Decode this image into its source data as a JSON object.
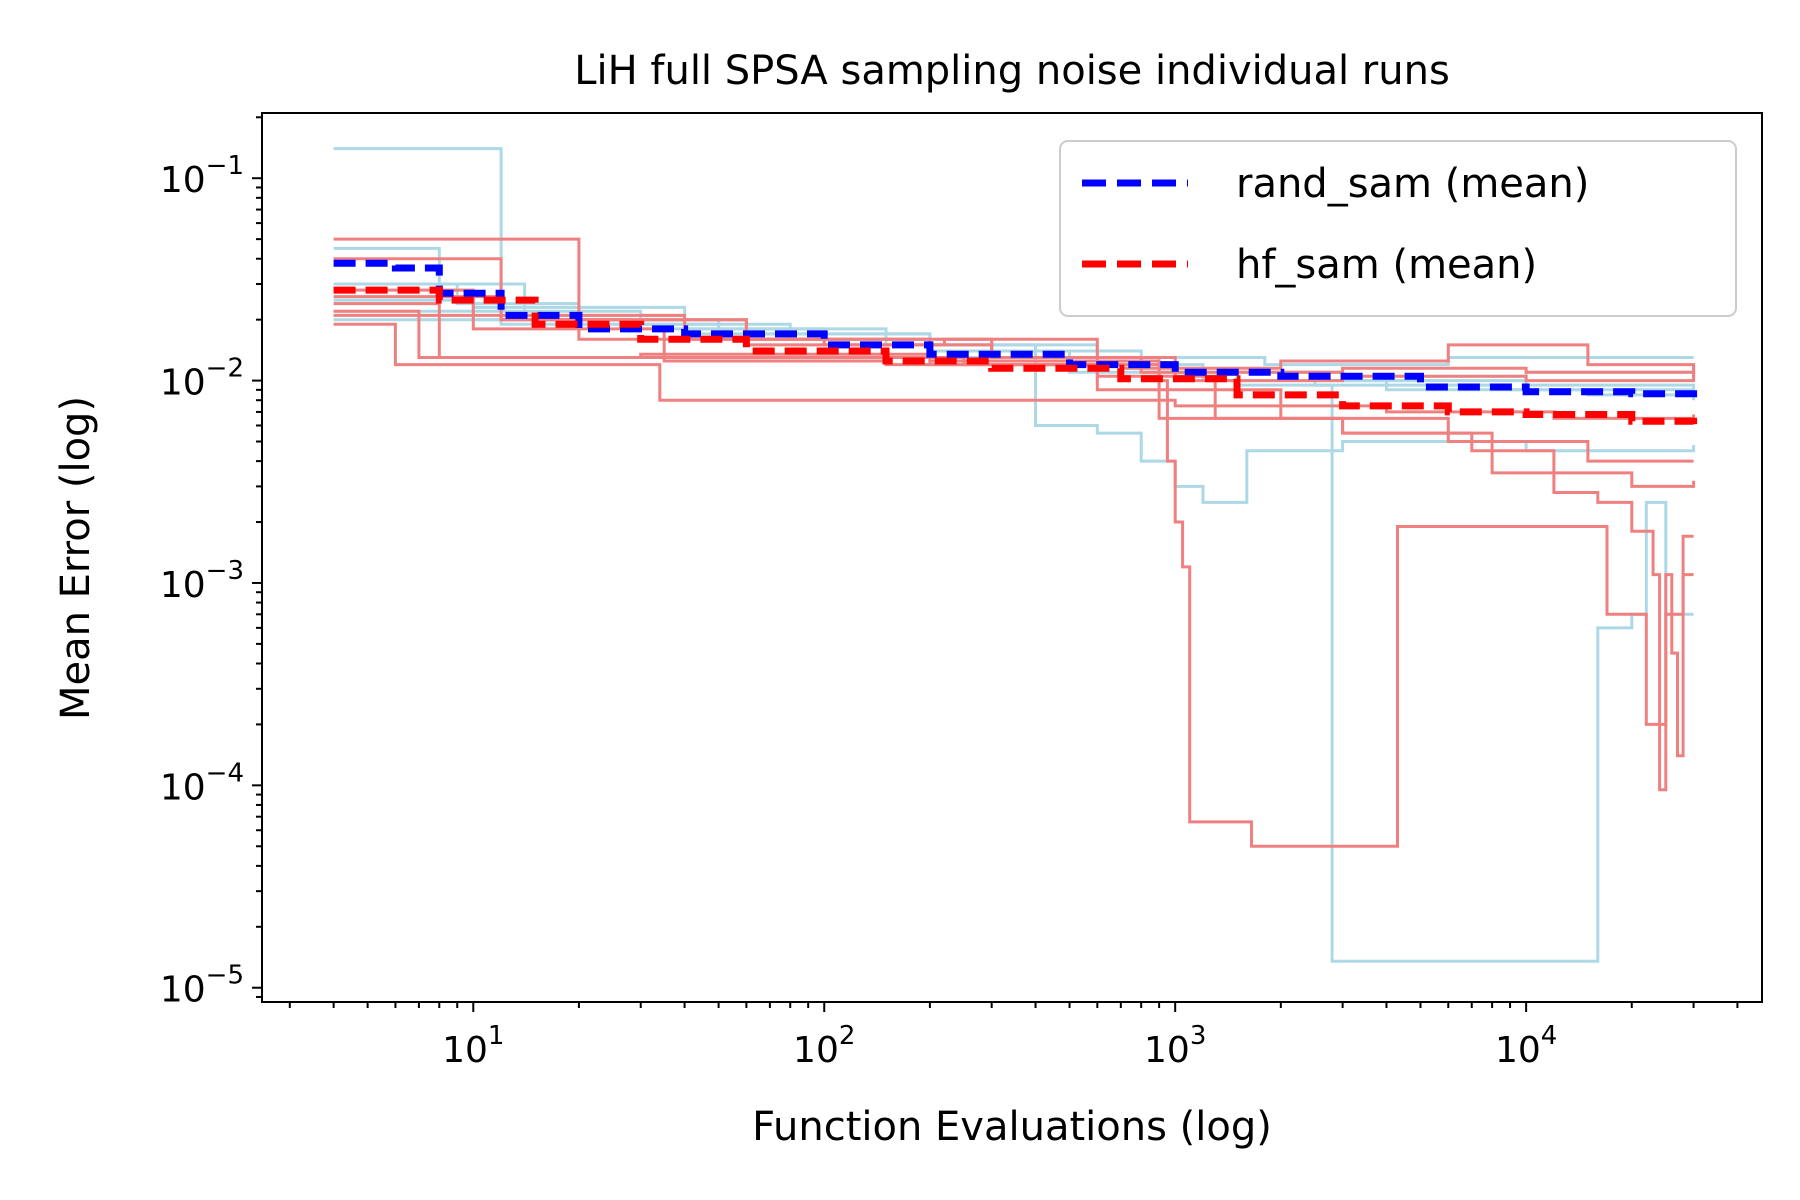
{
  "chart_data": {
    "type": "line",
    "title": "LiH full SPSA sampling noise individual runs",
    "xlabel": "Function Evaluations (log)",
    "ylabel": "Mean Error (log)",
    "xscale": "log",
    "yscale": "log",
    "xlim": [
      2.5,
      47000
    ],
    "ylim": [
      8.5e-06,
      0.21
    ],
    "grid": false,
    "legend_position": "upper right",
    "x_ticks": [
      {
        "value": 10,
        "base": "10",
        "exp": "1"
      },
      {
        "value": 100,
        "base": "10",
        "exp": "2"
      },
      {
        "value": 1000,
        "base": "10",
        "exp": "3"
      },
      {
        "value": 10000,
        "base": "10",
        "exp": "4"
      }
    ],
    "y_ticks": [
      {
        "value": 0.1,
        "base": "10",
        "exp": "−1"
      },
      {
        "value": 0.01,
        "base": "10",
        "exp": "−2"
      },
      {
        "value": 0.001,
        "base": "10",
        "exp": "−3"
      },
      {
        "value": 0.0001,
        "base": "10",
        "exp": "−4"
      },
      {
        "value": 1e-05,
        "base": "10",
        "exp": "−5"
      }
    ],
    "legend": [
      {
        "label": "rand_sam (mean)",
        "color": "#0000ff",
        "style": "dashed"
      },
      {
        "label": "hf_sam (mean)",
        "color": "#ff0000",
        "style": "dashed"
      }
    ],
    "colors": {
      "rand_sam_runs": "#add8e6",
      "hf_sam_runs": "#f08080",
      "rand_sam_mean": "#0000ff",
      "hf_sam_mean": "#ff0000"
    },
    "series": [
      {
        "name": "rand_sam run 1",
        "group": "rand_sam",
        "points": [
          [
            4,
            0.14
          ],
          [
            7,
            0.14
          ],
          [
            12,
            0.02
          ],
          [
            60,
            0.015
          ],
          [
            300,
            0.013
          ],
          [
            1000,
            0.011
          ],
          [
            3000,
            0.01
          ],
          [
            10000,
            0.011
          ],
          [
            30000,
            0.012
          ]
        ]
      },
      {
        "name": "rand_sam run 2",
        "group": "rand_sam",
        "points": [
          [
            4,
            0.045
          ],
          [
            8,
            0.03
          ],
          [
            14,
            0.021
          ],
          [
            40,
            0.018
          ],
          [
            150,
            0.015
          ],
          [
            600,
            0.013
          ],
          [
            1800,
            0.012
          ],
          [
            6000,
            0.013
          ],
          [
            30000,
            0.013
          ]
        ]
      },
      {
        "name": "rand_sam run 3",
        "group": "rand_sam",
        "points": [
          [
            4,
            0.03
          ],
          [
            9,
            0.024
          ],
          [
            20,
            0.019
          ],
          [
            80,
            0.016
          ],
          [
            300,
            0.013
          ],
          [
            900,
            0.011
          ],
          [
            2500,
            0.0095
          ],
          [
            9000,
            0.009
          ],
          [
            30000,
            0.008
          ]
        ]
      },
      {
        "name": "rand_sam run 4",
        "group": "rand_sam",
        "points": [
          [
            4,
            0.025
          ],
          [
            10,
            0.022
          ],
          [
            30,
            0.018
          ],
          [
            100,
            0.015
          ],
          [
            400,
            0.012
          ],
          [
            1200,
            0.01
          ],
          [
            4000,
            0.009
          ],
          [
            15000,
            0.0085
          ],
          [
            30000,
            0.0085
          ]
        ]
      },
      {
        "name": "rand_sam run 5",
        "group": "rand_sam",
        "points": [
          [
            4,
            0.02
          ],
          [
            12,
            0.019
          ],
          [
            50,
            0.016
          ],
          [
            200,
            0.014
          ],
          [
            500,
            0.011
          ],
          [
            1500,
            0.0095
          ],
          [
            2800,
            0.009
          ],
          [
            2800,
            1.35e-05
          ],
          [
            16000,
            1.35e-05
          ],
          [
            16000,
            0.0006
          ],
          [
            20000,
            0.0007
          ],
          [
            22000,
            0.0025
          ],
          [
            25000,
            0.0007
          ],
          [
            30000,
            0.0007
          ]
        ]
      },
      {
        "name": "rand_sam run 6",
        "group": "rand_sam",
        "points": [
          [
            4,
            0.028
          ],
          [
            10,
            0.023
          ],
          [
            40,
            0.017
          ],
          [
            200,
            0.013
          ],
          [
            400,
            0.006
          ],
          [
            600,
            0.0055
          ],
          [
            800,
            0.004
          ],
          [
            1000,
            0.003
          ],
          [
            1200,
            0.0025
          ],
          [
            1600,
            0.0045
          ],
          [
            3000,
            0.005
          ],
          [
            10000,
            0.0045
          ],
          [
            30000,
            0.0048
          ]
        ]
      },
      {
        "name": "rand_sam run 7",
        "group": "rand_sam",
        "points": [
          [
            4,
            0.022
          ],
          [
            10,
            0.02
          ],
          [
            50,
            0.017
          ],
          [
            200,
            0.014
          ],
          [
            800,
            0.011
          ],
          [
            3000,
            0.0105
          ],
          [
            10000,
            0.0095
          ],
          [
            30000,
            0.009
          ]
        ]
      },
      {
        "name": "hf_sam run 1",
        "group": "hf_sam",
        "points": [
          [
            4,
            0.05
          ],
          [
            14,
            0.05
          ],
          [
            20,
            0.016
          ],
          [
            100,
            0.015
          ],
          [
            300,
            0.013
          ],
          [
            800,
            0.011
          ],
          [
            3000,
            0.0115
          ],
          [
            10000,
            0.011
          ],
          [
            30000,
            0.0115
          ]
        ]
      },
      {
        "name": "hf_sam run 2",
        "group": "hf_sam",
        "points": [
          [
            4,
            0.04
          ],
          [
            8,
            0.04
          ],
          [
            12,
            0.02
          ],
          [
            60,
            0.016
          ],
          [
            300,
            0.013
          ],
          [
            1000,
            0.01
          ],
          [
            3000,
            0.0105
          ],
          [
            10000,
            0.01
          ],
          [
            30000,
            0.011
          ]
        ]
      },
      {
        "name": "hf_sam run 3",
        "group": "hf_sam",
        "points": [
          [
            4,
            0.019
          ],
          [
            6,
            0.012
          ],
          [
            30,
            0.012
          ],
          [
            34,
            0.008
          ],
          [
            200,
            0.008
          ],
          [
            1000,
            0.0075
          ],
          [
            4000,
            0.007
          ],
          [
            12000,
            0.0065
          ],
          [
            30000,
            0.0068
          ]
        ]
      },
      {
        "name": "hf_sam run 4",
        "group": "hf_sam",
        "points": [
          [
            4,
            0.022
          ],
          [
            7,
            0.013
          ],
          [
            40,
            0.013
          ],
          [
            250,
            0.012
          ],
          [
            900,
            0.01
          ],
          [
            950,
            0.004
          ],
          [
            1000,
            0.002
          ],
          [
            1050,
            0.0012
          ],
          [
            1100,
            0.0012
          ],
          [
            1100,
            6.6e-05
          ],
          [
            1650,
            6.6e-05
          ],
          [
            1650,
            5e-05
          ],
          [
            4300,
            5e-05
          ],
          [
            4300,
            0.0019
          ],
          [
            17000,
            0.0019
          ],
          [
            17000,
            0.0007
          ],
          [
            19000,
            0.0007
          ],
          [
            22000,
            0.0002
          ],
          [
            25000,
            0.0002
          ],
          [
            25000,
            0.0007
          ],
          [
            28000,
            0.0007
          ],
          [
            28000,
            0.0017
          ],
          [
            30000,
            0.0017
          ]
        ]
      },
      {
        "name": "hf_sam run 5",
        "group": "hf_sam",
        "points": [
          [
            4,
            0.028
          ],
          [
            10,
            0.021
          ],
          [
            40,
            0.016
          ],
          [
            200,
            0.0125
          ],
          [
            900,
            0.0065
          ],
          [
            3000,
            0.0055
          ],
          [
            8000,
            0.0035
          ],
          [
            12000,
            0.0028
          ],
          [
            16000,
            0.0025
          ],
          [
            20000,
            0.0018
          ],
          [
            23000,
            0.0011
          ],
          [
            24000,
            9.5e-05
          ],
          [
            25000,
            0.0011
          ],
          [
            26000,
            0.00045
          ],
          [
            27000,
            0.00014
          ],
          [
            28000,
            0.0011
          ],
          [
            30000,
            0.0011
          ]
        ]
      },
      {
        "name": "hf_sam run 6",
        "group": "hf_sam",
        "points": [
          [
            4,
            0.024
          ],
          [
            8,
            0.013
          ],
          [
            30,
            0.0135
          ],
          [
            200,
            0.012
          ],
          [
            700,
            0.0115
          ],
          [
            2000,
            0.0125
          ],
          [
            6000,
            0.015
          ],
          [
            15000,
            0.012
          ],
          [
            30000,
            0.0105
          ]
        ]
      },
      {
        "name": "hf_sam run 7",
        "group": "hf_sam",
        "points": [
          [
            4,
            0.026
          ],
          [
            12,
            0.02
          ],
          [
            60,
            0.015
          ],
          [
            220,
            0.016
          ],
          [
            600,
            0.0105
          ],
          [
            1300,
            0.0065
          ],
          [
            3000,
            0.0055
          ],
          [
            7000,
            0.0045
          ],
          [
            12000,
            0.0035
          ],
          [
            20000,
            0.003
          ],
          [
            30000,
            0.0032
          ]
        ]
      },
      {
        "name": "hf_sam run 8",
        "group": "hf_sam",
        "points": [
          [
            4,
            0.021
          ],
          [
            10,
            0.018
          ],
          [
            35,
            0.017
          ],
          [
            35,
            0.0125
          ],
          [
            150,
            0.012
          ],
          [
            600,
            0.009
          ],
          [
            2000,
            0.0065
          ],
          [
            6000,
            0.005
          ],
          [
            15000,
            0.004
          ],
          [
            30000,
            0.004
          ]
        ]
      },
      {
        "name": "rand_sam (mean)",
        "group": "mean_rand",
        "points": [
          [
            4,
            0.038
          ],
          [
            6,
            0.036
          ],
          [
            8,
            0.027
          ],
          [
            12,
            0.021
          ],
          [
            20,
            0.018
          ],
          [
            40,
            0.017
          ],
          [
            100,
            0.015
          ],
          [
            200,
            0.0135
          ],
          [
            500,
            0.012
          ],
          [
            1000,
            0.011
          ],
          [
            2000,
            0.0105
          ],
          [
            5000,
            0.0093
          ],
          [
            10000,
            0.0088
          ],
          [
            20000,
            0.0086
          ],
          [
            30000,
            0.0082
          ]
        ]
      },
      {
        "name": "hf_sam (mean)",
        "group": "mean_hf",
        "points": [
          [
            4,
            0.028
          ],
          [
            8,
            0.025
          ],
          [
            15,
            0.019
          ],
          [
            30,
            0.016
          ],
          [
            60,
            0.014
          ],
          [
            150,
            0.0125
          ],
          [
            300,
            0.0115
          ],
          [
            700,
            0.0102
          ],
          [
            1500,
            0.0085
          ],
          [
            3000,
            0.0075
          ],
          [
            6000,
            0.007
          ],
          [
            10000,
            0.0068
          ],
          [
            20000,
            0.0063
          ],
          [
            30000,
            0.0058
          ]
        ]
      }
    ]
  }
}
